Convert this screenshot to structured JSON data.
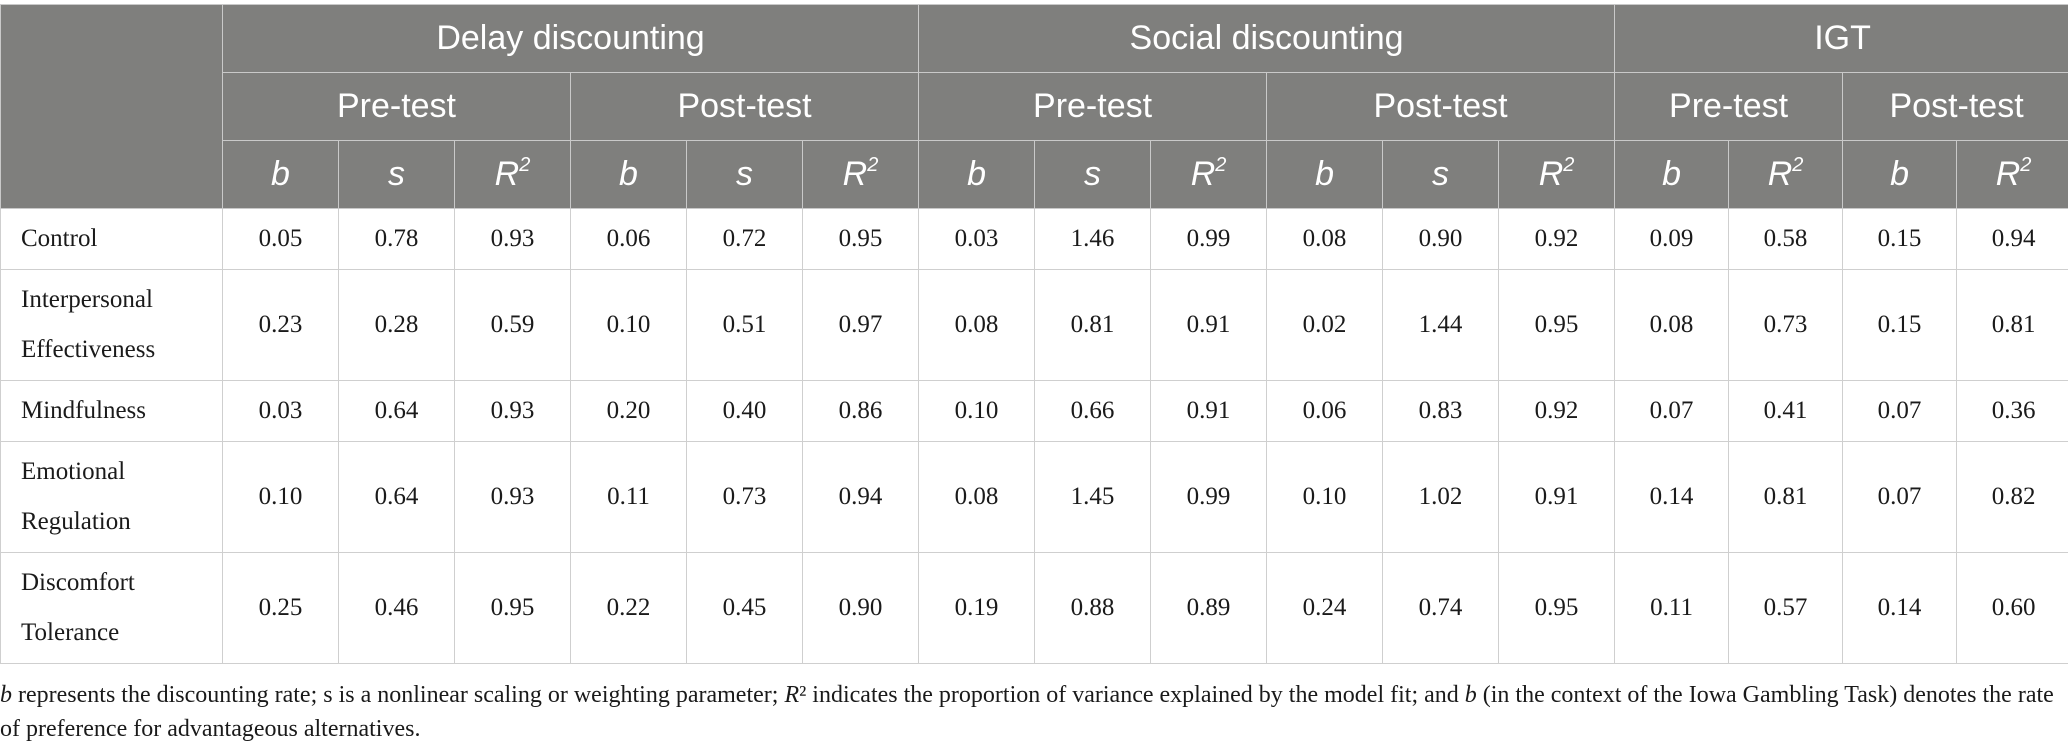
{
  "groups": [
    "Delay discounting",
    "Social discounting",
    "IGT"
  ],
  "phases": [
    "Pre-test",
    "Post-test",
    "Pre-test",
    "Post-test",
    "Pre-test",
    "Post-test"
  ],
  "params": {
    "b": "b",
    "s": "s",
    "R": "R",
    "sup": "2"
  },
  "rows": [
    {
      "label": "Control",
      "values": [
        "0.05",
        "0.78",
        "0.93",
        "0.06",
        "0.72",
        "0.95",
        "0.03",
        "1.46",
        "0.99",
        "0.08",
        "0.90",
        "0.92",
        "0.09",
        "0.58",
        "0.15",
        "0.94"
      ]
    },
    {
      "label": "Interpersonal Effectiveness",
      "values": [
        "0.23",
        "0.28",
        "0.59",
        "0.10",
        "0.51",
        "0.97",
        "0.08",
        "0.81",
        "0.91",
        "0.02",
        "1.44",
        "0.95",
        "0.08",
        "0.73",
        "0.15",
        "0.81"
      ]
    },
    {
      "label": "Mindfulness",
      "values": [
        "0.03",
        "0.64",
        "0.93",
        "0.20",
        "0.40",
        "0.86",
        "0.10",
        "0.66",
        "0.91",
        "0.06",
        "0.83",
        "0.92",
        "0.07",
        "0.41",
        "0.07",
        "0.36"
      ]
    },
    {
      "label": "Emotional Regulation",
      "values": [
        "0.10",
        "0.64",
        "0.93",
        "0.11",
        "0.73",
        "0.94",
        "0.08",
        "1.45",
        "0.99",
        "0.10",
        "1.02",
        "0.91",
        "0.14",
        "0.81",
        "0.07",
        "0.82"
      ]
    },
    {
      "label": "Discomfort Tolerance",
      "values": [
        "0.25",
        "0.46",
        "0.95",
        "0.22",
        "0.45",
        "0.90",
        "0.19",
        "0.88",
        "0.89",
        "0.24",
        "0.74",
        "0.95",
        "0.11",
        "0.57",
        "0.14",
        "0.60"
      ]
    }
  ],
  "footnote": {
    "p1": "b",
    "p2": " represents the discounting rate; s is a nonlinear scaling or weighting parameter; ",
    "p3": "R",
    "p4": "² indicates the proportion of variance explained by the model fit; and ",
    "p5": "b",
    "p6": " (in the context of the Iowa Gambling Task) denotes the rate of preference for advantageous alternatives."
  }
}
